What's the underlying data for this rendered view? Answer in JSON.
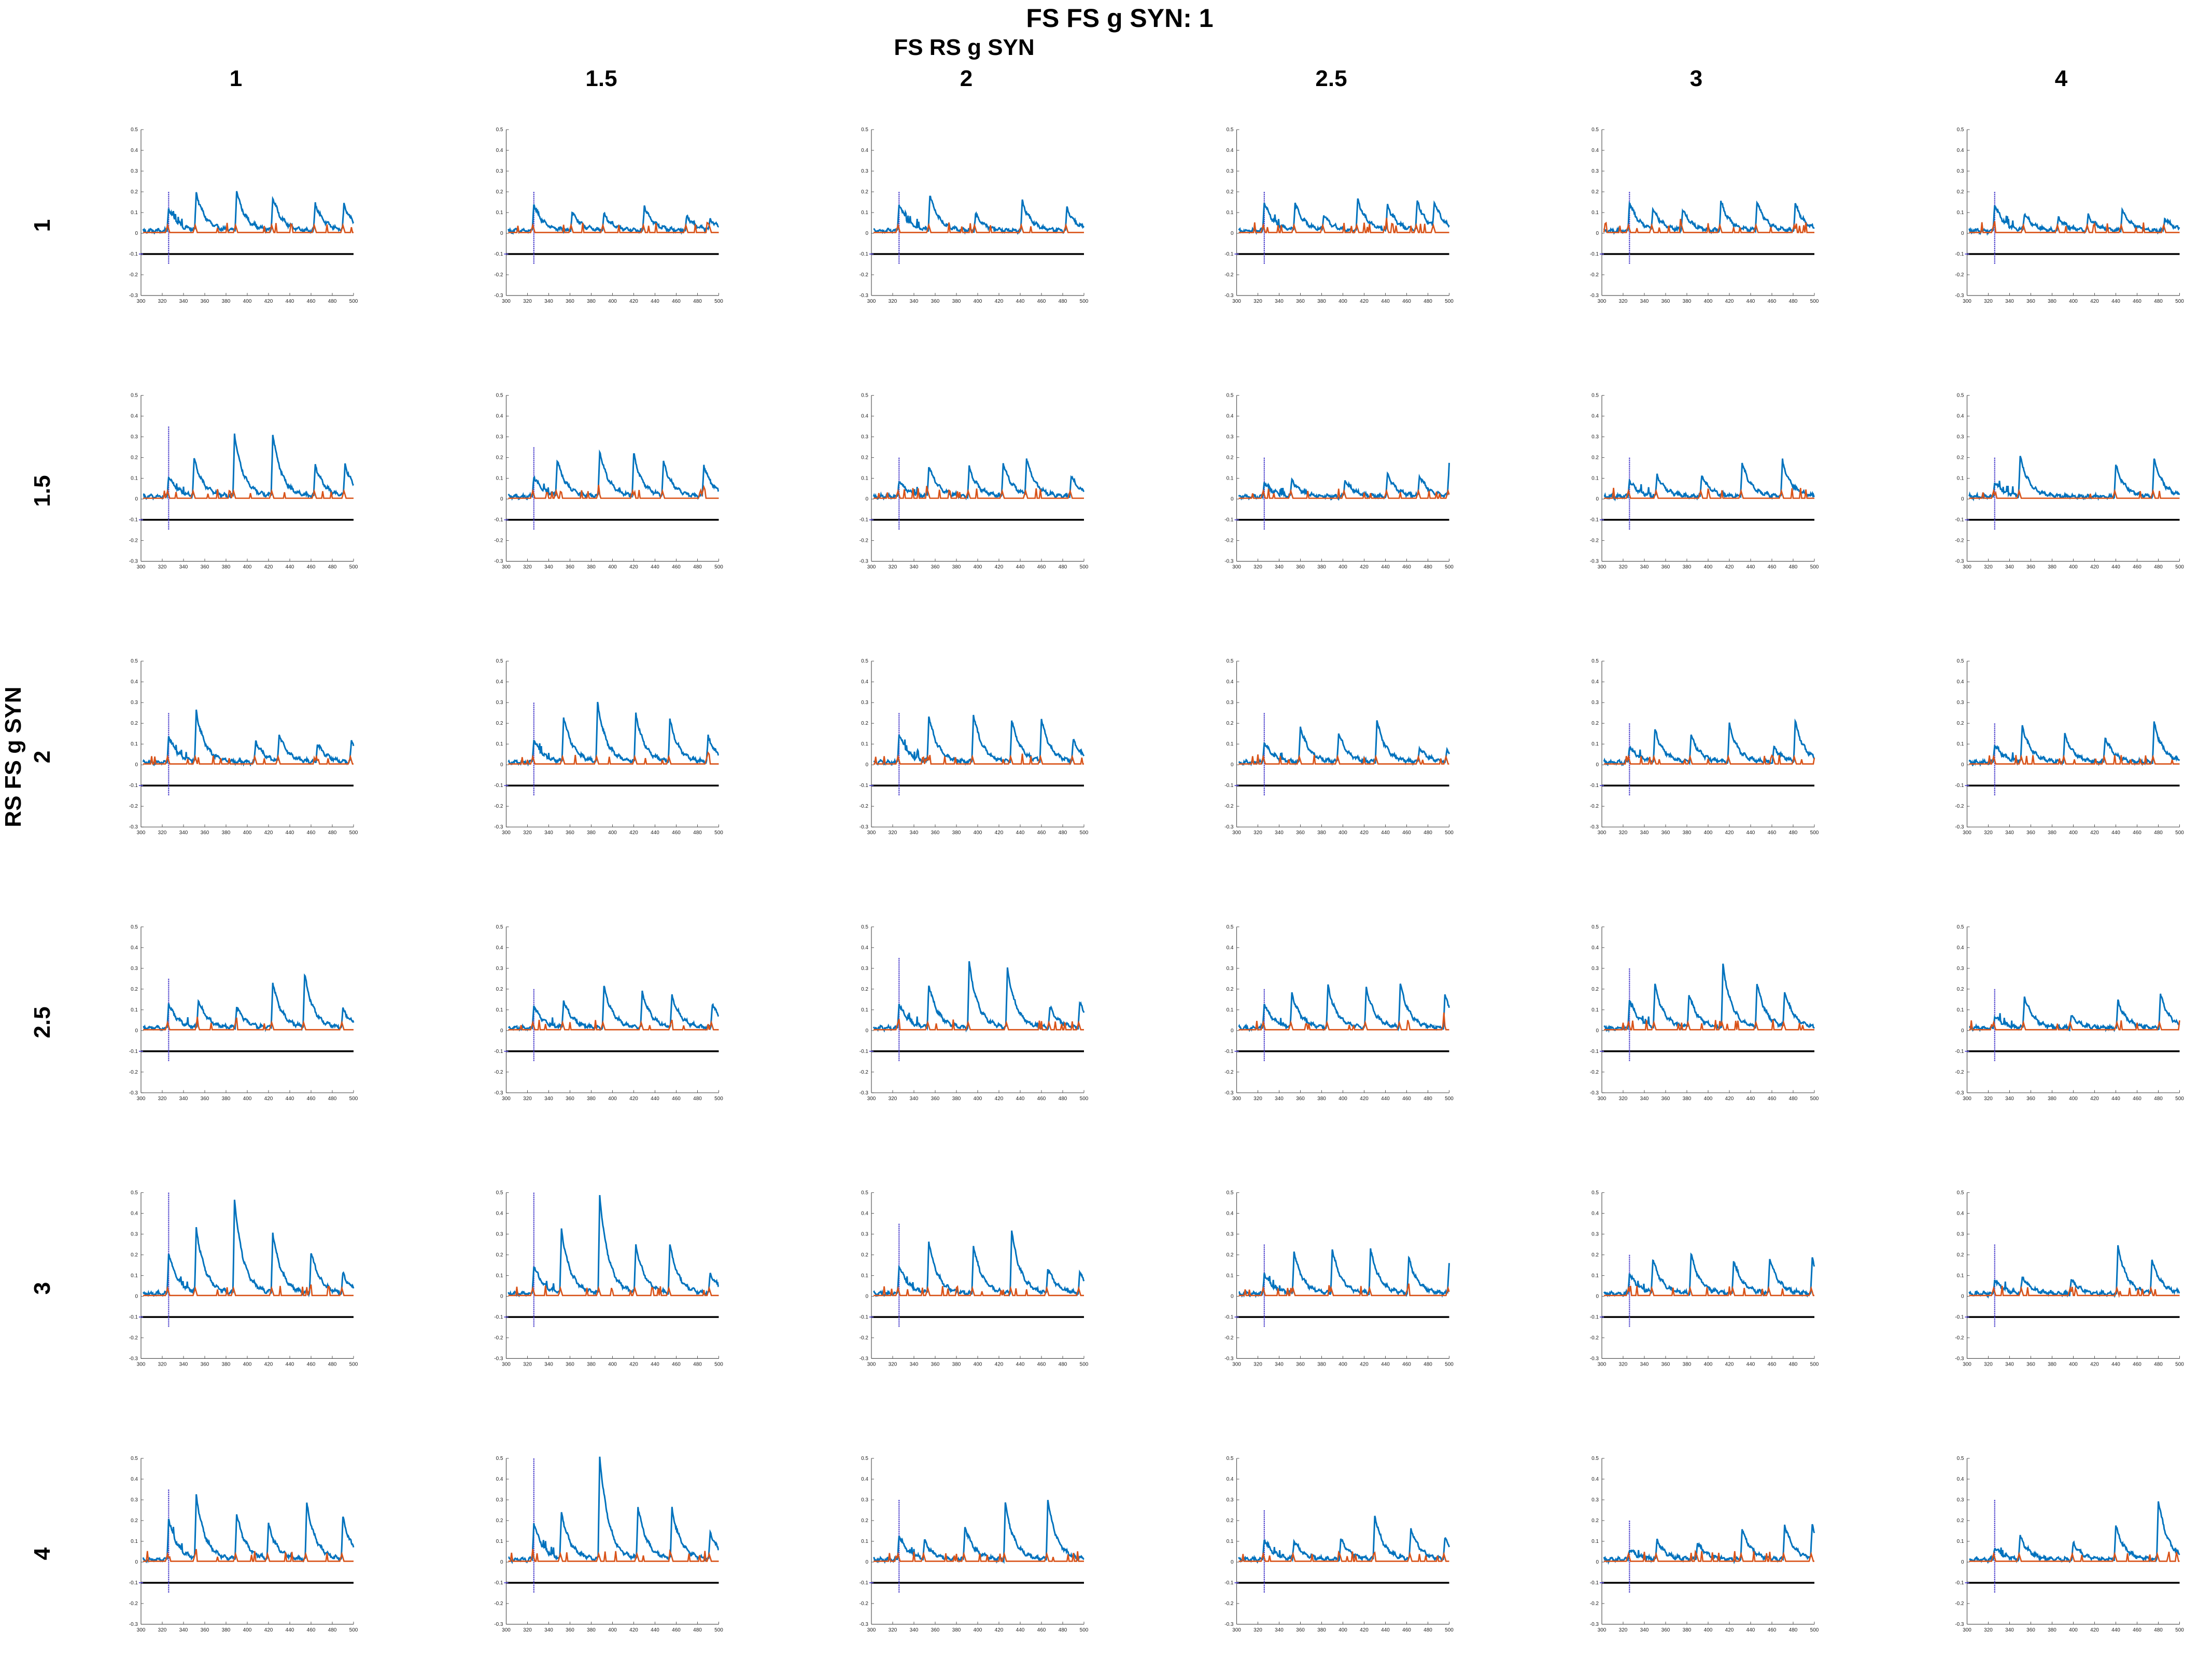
{
  "figure": {
    "title": "FS FS g SYN: 1",
    "col_header_title": "FS RS g SYN",
    "row_header_title": "RS FS g SYN",
    "col_labels": [
      "1",
      "1.5",
      "2",
      "2.5",
      "3",
      "4"
    ],
    "row_labels": [
      "1",
      "1.5",
      "2",
      "2.5",
      "3",
      "4"
    ]
  },
  "chart_data": {
    "type": "line",
    "layout": "grid",
    "rows": 6,
    "cols": 6,
    "xlim": [
      300,
      500
    ],
    "ylim": [
      -0.3,
      0.5
    ],
    "x_ticks": [
      300,
      320,
      340,
      360,
      380,
      400,
      420,
      440,
      460,
      480,
      500
    ],
    "y_ticks": [
      -0.3,
      -0.2,
      -0.1,
      0,
      0.1,
      0.2,
      0.3,
      0.4,
      0.5
    ],
    "reference_line": -0.1,
    "marker_x": 326,
    "colors": {
      "series_1": "#0072bd",
      "series_2": "#d95319",
      "reference": "#000000",
      "marker": "#5a4fd0"
    },
    "panels": [
      {
        "row": 0,
        "col": 0,
        "peaks": [
          [
            326,
            0.11
          ],
          [
            352,
            0.18
          ],
          [
            390,
            0.19
          ],
          [
            424,
            0.16
          ],
          [
            464,
            0.13
          ],
          [
            491,
            0.12
          ]
        ],
        "marker_top": 0.2
      },
      {
        "row": 0,
        "col": 1,
        "peaks": [
          [
            326,
            0.13
          ],
          [
            362,
            0.09
          ],
          [
            392,
            0.08
          ],
          [
            430,
            0.12
          ],
          [
            470,
            0.07
          ],
          [
            492,
            0.05
          ]
        ],
        "marker_top": 0.2
      },
      {
        "row": 0,
        "col": 2,
        "peaks": [
          [
            326,
            0.13
          ],
          [
            355,
            0.17
          ],
          [
            398,
            0.08
          ],
          [
            442,
            0.14
          ],
          [
            484,
            0.11
          ]
        ],
        "marker_top": 0.2
      },
      {
        "row": 0,
        "col": 3,
        "peaks": [
          [
            326,
            0.14
          ],
          [
            355,
            0.13
          ],
          [
            382,
            0.07
          ],
          [
            414,
            0.15
          ],
          [
            442,
            0.12
          ],
          [
            470,
            0.14
          ],
          [
            486,
            0.12
          ]
        ],
        "marker_top": 0.2
      },
      {
        "row": 0,
        "col": 4,
        "peaks": [
          [
            326,
            0.14
          ],
          [
            348,
            0.1
          ],
          [
            376,
            0.1
          ],
          [
            412,
            0.14
          ],
          [
            446,
            0.14
          ],
          [
            482,
            0.13
          ]
        ],
        "marker_top": 0.2
      },
      {
        "row": 0,
        "col": 5,
        "peaks": [
          [
            326,
            0.13
          ],
          [
            354,
            0.08
          ],
          [
            386,
            0.06
          ],
          [
            414,
            0.07
          ],
          [
            446,
            0.1
          ],
          [
            486,
            0.06
          ]
        ],
        "marker_top": 0.2
      },
      {
        "row": 1,
        "col": 0,
        "peaks": [
          [
            326,
            0.1
          ],
          [
            350,
            0.18
          ],
          [
            388,
            0.3
          ],
          [
            424,
            0.3
          ],
          [
            464,
            0.15
          ],
          [
            492,
            0.15
          ]
        ],
        "marker_top": 0.35
      },
      {
        "row": 1,
        "col": 1,
        "peaks": [
          [
            326,
            0.1
          ],
          [
            348,
            0.17
          ],
          [
            388,
            0.22
          ],
          [
            420,
            0.2
          ],
          [
            448,
            0.16
          ],
          [
            486,
            0.15
          ]
        ],
        "marker_top": 0.25
      },
      {
        "row": 1,
        "col": 2,
        "peaks": [
          [
            326,
            0.08
          ],
          [
            354,
            0.15
          ],
          [
            392,
            0.14
          ],
          [
            424,
            0.16
          ],
          [
            446,
            0.17
          ],
          [
            488,
            0.1
          ]
        ],
        "marker_top": 0.2
      },
      {
        "row": 1,
        "col": 3,
        "peaks": [
          [
            326,
            0.07
          ],
          [
            352,
            0.08
          ],
          [
            402,
            0.08
          ],
          [
            442,
            0.11
          ],
          [
            472,
            0.1
          ],
          [
            500,
            0.16
          ]
        ],
        "marker_top": 0.2
      },
      {
        "row": 1,
        "col": 4,
        "peaks": [
          [
            326,
            0.08
          ],
          [
            352,
            0.1
          ],
          [
            394,
            0.1
          ],
          [
            432,
            0.16
          ],
          [
            470,
            0.17
          ]
        ],
        "marker_top": 0.2
      },
      {
        "row": 1,
        "col": 5,
        "peaks": [
          [
            326,
            0.07
          ],
          [
            350,
            0.19
          ],
          [
            440,
            0.15
          ],
          [
            476,
            0.18
          ]
        ],
        "marker_top": 0.2
      },
      {
        "row": 2,
        "col": 0,
        "peaks": [
          [
            326,
            0.13
          ],
          [
            352,
            0.24
          ],
          [
            408,
            0.1
          ],
          [
            430,
            0.13
          ],
          [
            466,
            0.09
          ],
          [
            498,
            0.1
          ]
        ],
        "marker_top": 0.25
      },
      {
        "row": 2,
        "col": 1,
        "peaks": [
          [
            326,
            0.11
          ],
          [
            354,
            0.22
          ],
          [
            386,
            0.28
          ],
          [
            422,
            0.23
          ],
          [
            454,
            0.2
          ],
          [
            490,
            0.12
          ]
        ],
        "marker_top": 0.3
      },
      {
        "row": 2,
        "col": 2,
        "peaks": [
          [
            326,
            0.14
          ],
          [
            354,
            0.22
          ],
          [
            396,
            0.23
          ],
          [
            432,
            0.2
          ],
          [
            460,
            0.2
          ],
          [
            490,
            0.1
          ]
        ],
        "marker_top": 0.25
      },
      {
        "row": 2,
        "col": 3,
        "peaks": [
          [
            326,
            0.1
          ],
          [
            360,
            0.17
          ],
          [
            396,
            0.14
          ],
          [
            432,
            0.2
          ],
          [
            472,
            0.07
          ],
          [
            498,
            0.05
          ]
        ],
        "marker_top": 0.25
      },
      {
        "row": 2,
        "col": 4,
        "peaks": [
          [
            326,
            0.08
          ],
          [
            350,
            0.15
          ],
          [
            384,
            0.13
          ],
          [
            420,
            0.18
          ],
          [
            462,
            0.07
          ],
          [
            482,
            0.19
          ]
        ],
        "marker_top": 0.2
      },
      {
        "row": 2,
        "col": 5,
        "peaks": [
          [
            326,
            0.09
          ],
          [
            352,
            0.17
          ],
          [
            392,
            0.13
          ],
          [
            430,
            0.12
          ],
          [
            476,
            0.19
          ]
        ],
        "marker_top": 0.2
      },
      {
        "row": 3,
        "col": 0,
        "peaks": [
          [
            326,
            0.12
          ],
          [
            354,
            0.13
          ],
          [
            390,
            0.1
          ],
          [
            424,
            0.22
          ],
          [
            454,
            0.25
          ],
          [
            490,
            0.09
          ]
        ],
        "marker_top": 0.25
      },
      {
        "row": 3,
        "col": 1,
        "peaks": [
          [
            326,
            0.11
          ],
          [
            354,
            0.13
          ],
          [
            392,
            0.2
          ],
          [
            428,
            0.17
          ],
          [
            456,
            0.15
          ],
          [
            494,
            0.12
          ]
        ],
        "marker_top": 0.2
      },
      {
        "row": 3,
        "col": 2,
        "peaks": [
          [
            326,
            0.12
          ],
          [
            354,
            0.21
          ],
          [
            392,
            0.31
          ],
          [
            428,
            0.28
          ],
          [
            468,
            0.1
          ],
          [
            496,
            0.12
          ]
        ],
        "marker_top": 0.35
      },
      {
        "row": 3,
        "col": 3,
        "peaks": [
          [
            326,
            0.12
          ],
          [
            352,
            0.16
          ],
          [
            386,
            0.2
          ],
          [
            422,
            0.19
          ],
          [
            454,
            0.21
          ],
          [
            496,
            0.16
          ]
        ],
        "marker_top": 0.2
      },
      {
        "row": 3,
        "col": 4,
        "peaks": [
          [
            326,
            0.14
          ],
          [
            350,
            0.2
          ],
          [
            382,
            0.16
          ],
          [
            414,
            0.3
          ],
          [
            446,
            0.21
          ],
          [
            472,
            0.17
          ]
        ],
        "marker_top": 0.3
      },
      {
        "row": 3,
        "col": 5,
        "peaks": [
          [
            326,
            0.06
          ],
          [
            354,
            0.15
          ],
          [
            398,
            0.06
          ],
          [
            442,
            0.13
          ],
          [
            482,
            0.16
          ]
        ],
        "marker_top": 0.2
      },
      {
        "row": 4,
        "col": 0,
        "peaks": [
          [
            326,
            0.2
          ],
          [
            352,
            0.31
          ],
          [
            388,
            0.45
          ],
          [
            424,
            0.29
          ],
          [
            460,
            0.2
          ],
          [
            490,
            0.09
          ]
        ],
        "marker_top": 0.5
      },
      {
        "row": 4,
        "col": 1,
        "peaks": [
          [
            326,
            0.14
          ],
          [
            352,
            0.3
          ],
          [
            388,
            0.47
          ],
          [
            422,
            0.23
          ],
          [
            454,
            0.23
          ],
          [
            492,
            0.1
          ]
        ],
        "marker_top": 0.5
      },
      {
        "row": 4,
        "col": 2,
        "peaks": [
          [
            326,
            0.14
          ],
          [
            354,
            0.25
          ],
          [
            396,
            0.23
          ],
          [
            432,
            0.3
          ],
          [
            466,
            0.12
          ],
          [
            496,
            0.1
          ]
        ],
        "marker_top": 0.35
      },
      {
        "row": 4,
        "col": 3,
        "peaks": [
          [
            326,
            0.1
          ],
          [
            354,
            0.2
          ],
          [
            390,
            0.21
          ],
          [
            426,
            0.21
          ],
          [
            462,
            0.17
          ],
          [
            500,
            0.15
          ]
        ],
        "marker_top": 0.25
      },
      {
        "row": 4,
        "col": 4,
        "peaks": [
          [
            326,
            0.1
          ],
          [
            348,
            0.16
          ],
          [
            384,
            0.19
          ],
          [
            424,
            0.16
          ],
          [
            458,
            0.17
          ],
          [
            498,
            0.17
          ]
        ],
        "marker_top": 0.2
      },
      {
        "row": 4,
        "col": 5,
        "peaks": [
          [
            326,
            0.07
          ],
          [
            352,
            0.08
          ],
          [
            398,
            0.07
          ],
          [
            442,
            0.23
          ],
          [
            474,
            0.16
          ]
        ],
        "marker_top": 0.25
      },
      {
        "row": 5,
        "col": 0,
        "peaks": [
          [
            326,
            0.2
          ],
          [
            352,
            0.3
          ],
          [
            390,
            0.22
          ],
          [
            420,
            0.16
          ],
          [
            456,
            0.27
          ],
          [
            490,
            0.2
          ]
        ],
        "marker_top": 0.35
      },
      {
        "row": 5,
        "col": 1,
        "peaks": [
          [
            326,
            0.18
          ],
          [
            352,
            0.22
          ],
          [
            388,
            0.5
          ],
          [
            424,
            0.25
          ],
          [
            456,
            0.24
          ],
          [
            492,
            0.13
          ]
        ],
        "marker_top": 0.5
      },
      {
        "row": 5,
        "col": 2,
        "peaks": [
          [
            326,
            0.12
          ],
          [
            350,
            0.08
          ],
          [
            388,
            0.16
          ],
          [
            426,
            0.27
          ],
          [
            466,
            0.29
          ]
        ],
        "marker_top": 0.3
      },
      {
        "row": 5,
        "col": 3,
        "peaks": [
          [
            326,
            0.1
          ],
          [
            354,
            0.09
          ],
          [
            398,
            0.1
          ],
          [
            430,
            0.21
          ],
          [
            464,
            0.15
          ],
          [
            496,
            0.1
          ]
        ],
        "marker_top": 0.25
      },
      {
        "row": 5,
        "col": 4,
        "peaks": [
          [
            326,
            0.05
          ],
          [
            352,
            0.09
          ],
          [
            390,
            0.08
          ],
          [
            432,
            0.15
          ],
          [
            472,
            0.17
          ],
          [
            498,
            0.16
          ]
        ],
        "marker_top": 0.2
      },
      {
        "row": 5,
        "col": 5,
        "peaks": [
          [
            326,
            0.06
          ],
          [
            350,
            0.11
          ],
          [
            400,
            0.08
          ],
          [
            440,
            0.16
          ],
          [
            480,
            0.29
          ]
        ],
        "marker_top": 0.3
      }
    ]
  }
}
